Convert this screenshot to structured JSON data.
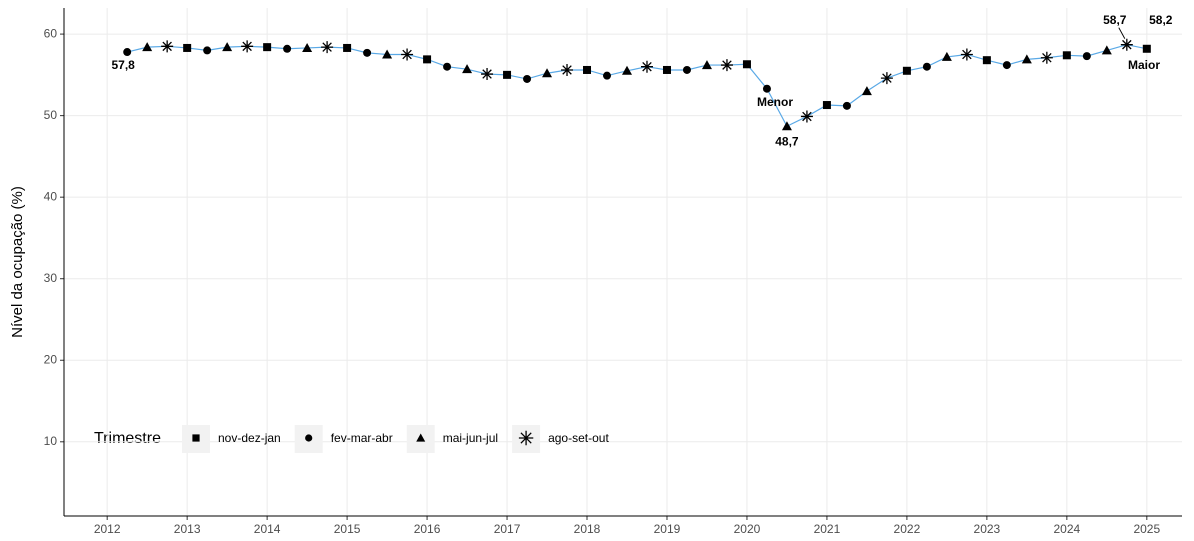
{
  "chart_data": {
    "type": "line",
    "y_label": "Nível da ocupação (%)",
    "legend_title": "Trimestre",
    "line_color": "#5aa9e6",
    "grid": true,
    "xlim": [
      2011.46,
      2025.44
    ],
    "xticks": [
      2012,
      2013,
      2014,
      2015,
      2016,
      2017,
      2018,
      2019,
      2020,
      2021,
      2022,
      2023,
      2024,
      2025
    ],
    "ylim": [
      0.9,
      63.2
    ],
    "yticks": [
      10,
      20,
      30,
      40,
      50,
      60
    ],
    "series": [
      {
        "name": "nov-dez-jan",
        "shape": "square",
        "color": "#000000",
        "x": [
          2013,
          2014,
          2015,
          2016,
          2017,
          2018,
          2019,
          2020,
          2021,
          2022,
          2023,
          2024,
          2025
        ],
        "values": [
          58.3,
          58.4,
          58.3,
          56.9,
          55.0,
          55.6,
          55.6,
          56.3,
          51.3,
          55.5,
          56.8,
          57.4,
          58.2
        ],
        "value_labels": [
          null,
          null,
          null,
          null,
          null,
          null,
          null,
          null,
          null,
          null,
          null,
          null,
          "58,2"
        ]
      },
      {
        "name": "fev-mar-abr",
        "shape": "circle",
        "color": "#000000",
        "x": [
          2012.25,
          2013.25,
          2014.25,
          2015.25,
          2016.25,
          2017.25,
          2018.25,
          2019.25,
          2020.25,
          2021.25,
          2022.25,
          2023.25,
          2024.25
        ],
        "values": [
          57.8,
          58.0,
          58.2,
          57.7,
          56.0,
          54.5,
          54.9,
          55.6,
          53.3,
          51.2,
          56.0,
          56.2,
          57.3
        ],
        "value_labels": [
          "57,8",
          null,
          null,
          null,
          null,
          null,
          null,
          null,
          null,
          null,
          null,
          null,
          null
        ]
      },
      {
        "name": "mai-jun-jul",
        "shape": "triangle",
        "color": "#000000",
        "x": [
          2012.5,
          2013.5,
          2014.5,
          2015.5,
          2016.5,
          2017.5,
          2018.5,
          2019.5,
          2020.5,
          2021.5,
          2022.5,
          2023.5,
          2024.5
        ],
        "values": [
          58.4,
          58.4,
          58.3,
          57.5,
          55.7,
          55.2,
          55.5,
          56.2,
          48.7,
          53.0,
          57.2,
          56.9,
          58.0
        ],
        "value_labels": [
          null,
          null,
          null,
          null,
          null,
          null,
          null,
          null,
          "48,7",
          null,
          null,
          null,
          null
        ]
      },
      {
        "name": "ago-set-out",
        "shape": "asterisk",
        "color": "#000000",
        "x": [
          2012.75,
          2013.75,
          2014.75,
          2015.75,
          2016.75,
          2017.75,
          2018.75,
          2019.75,
          2020.75,
          2021.75,
          2022.75,
          2023.75,
          2024.75
        ],
        "values": [
          58.5,
          58.5,
          58.4,
          57.5,
          55.1,
          55.6,
          56.0,
          56.2,
          49.9,
          54.6,
          57.5,
          57.1,
          58.7
        ],
        "value_labels": [
          null,
          null,
          null,
          null,
          null,
          null,
          null,
          null,
          null,
          null,
          null,
          null,
          "58,7"
        ]
      }
    ],
    "annotations": [
      "Menor",
      "Maior"
    ]
  }
}
